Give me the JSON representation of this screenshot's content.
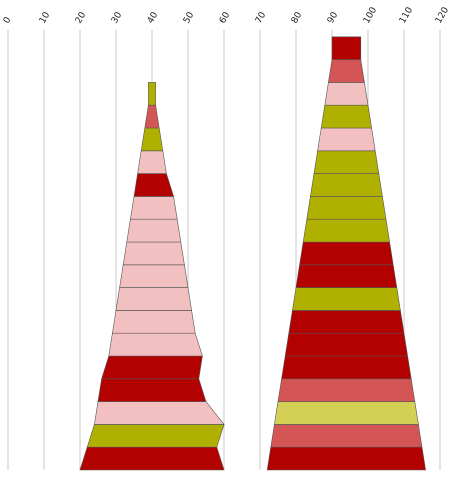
{
  "chart_data": {
    "type": "bar",
    "variant": "stacked-stepped-pyramid",
    "title": "",
    "xlabel": "",
    "ylabel": "",
    "xlim": [
      0,
      120
    ],
    "x_ticks": [
      "0",
      "10",
      "20",
      "30",
      "40",
      "50",
      "60",
      "70",
      "80",
      "90",
      "100",
      "110",
      "120"
    ],
    "tick_label_rotation_deg": -60,
    "grid": "vertical",
    "legend": "none",
    "colors": {
      "dark_red": "#b30000",
      "salmon": "#d45555",
      "pink": "#f2c0c0",
      "olive": "#b0b000",
      "yellow_green": "#d4d055",
      "grid": "#c8c8c8",
      "outline": "#555555"
    },
    "stacks": [
      {
        "center": 40,
        "segments": [
          {
            "left": 20,
            "right": 60,
            "color": "dark_red"
          },
          {
            "left": 22,
            "right": 58,
            "color": "olive"
          },
          {
            "left": 24,
            "right": 60,
            "color": "pink"
          },
          {
            "left": 25,
            "right": 55,
            "color": "dark_red"
          },
          {
            "left": 26,
            "right": 53,
            "color": "dark_red"
          },
          {
            "left": 28,
            "right": 54,
            "color": "pink"
          },
          {
            "left": 29,
            "right": 52,
            "color": "pink"
          },
          {
            "left": 30,
            "right": 51,
            "color": "pink"
          },
          {
            "left": 31,
            "right": 50,
            "color": "pink"
          },
          {
            "left": 32,
            "right": 49,
            "color": "pink"
          },
          {
            "left": 33,
            "right": 48,
            "color": "pink"
          },
          {
            "left": 34,
            "right": 47,
            "color": "pink"
          },
          {
            "left": 35,
            "right": 46,
            "color": "dark_red"
          },
          {
            "left": 36,
            "right": 44,
            "color": "pink"
          },
          {
            "left": 37,
            "right": 43,
            "color": "olive"
          },
          {
            "left": 38,
            "right": 42,
            "color": "salmon"
          },
          {
            "left": 39,
            "right": 41,
            "color": "olive"
          }
        ]
      },
      {
        "center": 95,
        "segments": [
          {
            "left": 72,
            "right": 116,
            "color": "dark_red"
          },
          {
            "left": 73,
            "right": 115,
            "color": "salmon"
          },
          {
            "left": 74,
            "right": 114,
            "color": "yellow_green"
          },
          {
            "left": 75,
            "right": 113,
            "color": "salmon"
          },
          {
            "left": 76,
            "right": 112,
            "color": "dark_red"
          },
          {
            "left": 77,
            "right": 111,
            "color": "dark_red"
          },
          {
            "left": 78,
            "right": 110,
            "color": "dark_red"
          },
          {
            "left": 79,
            "right": 109,
            "color": "olive"
          },
          {
            "left": 80,
            "right": 108,
            "color": "dark_red"
          },
          {
            "left": 81,
            "right": 107,
            "color": "dark_red"
          },
          {
            "left": 82,
            "right": 106,
            "color": "olive"
          },
          {
            "left": 83,
            "right": 105,
            "color": "olive"
          },
          {
            "left": 84,
            "right": 104,
            "color": "olive"
          },
          {
            "left": 85,
            "right": 103,
            "color": "olive"
          },
          {
            "left": 86,
            "right": 102,
            "color": "pink"
          },
          {
            "left": 87,
            "right": 101,
            "color": "olive"
          },
          {
            "left": 88,
            "right": 100,
            "color": "pink"
          },
          {
            "left": 89,
            "right": 99,
            "color": "salmon"
          },
          {
            "left": 90,
            "right": 98,
            "color": "dark_red"
          }
        ]
      }
    ]
  }
}
